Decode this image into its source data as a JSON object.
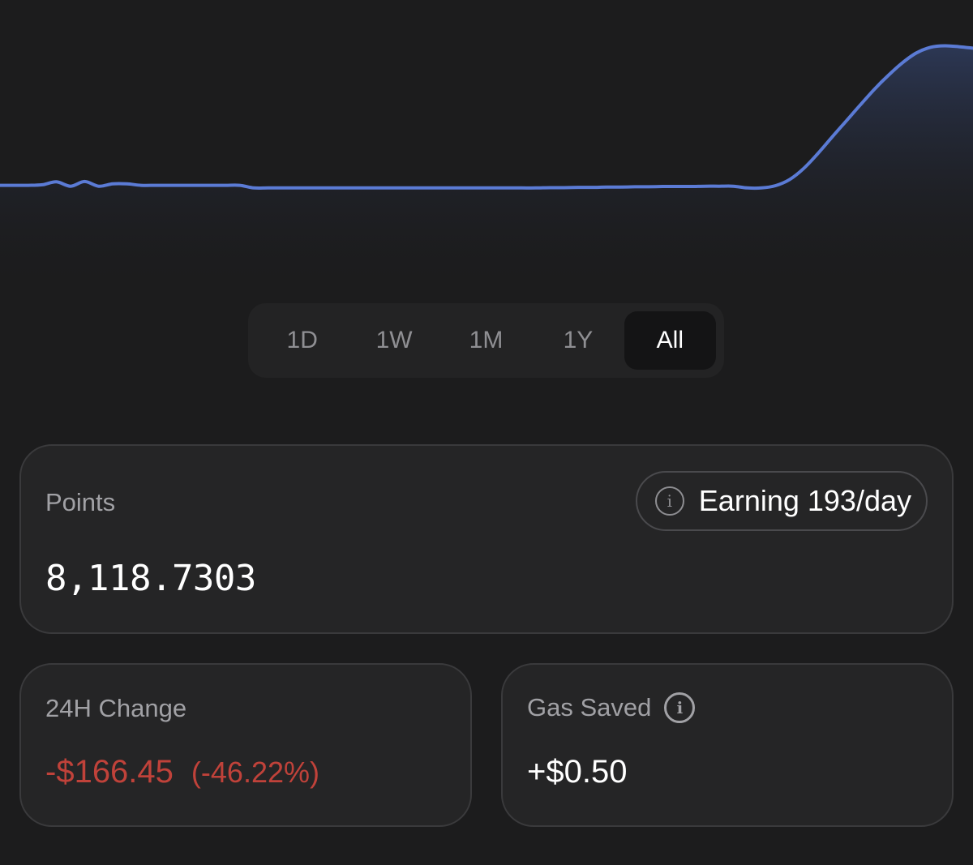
{
  "chart_data": {
    "type": "area",
    "series": [
      {
        "values": [
          36.5,
          36.5,
          36.5,
          36.7,
          37.7,
          36.2,
          37.8,
          36.2,
          37.0,
          37.0,
          36.5,
          36.5,
          36.5,
          36.5,
          36.5,
          36.5,
          36.5,
          36.5,
          35.6,
          35.6,
          35.6,
          35.6,
          35.6,
          35.6,
          35.6,
          35.6,
          35.6,
          35.6,
          35.6,
          35.6,
          35.6,
          35.6,
          35.6,
          35.6,
          35.6,
          35.6,
          35.6,
          35.6,
          35.6,
          35.7,
          35.7,
          35.8,
          35.8,
          35.9,
          35.9,
          36.0,
          36.0,
          36.1,
          36.1,
          36.1,
          36.2,
          36.2,
          36.2,
          35.6,
          35.6,
          36.4,
          38.5,
          42.3,
          47.4,
          53.0,
          58.5,
          64.0,
          69.4,
          74.2,
          78.5,
          81.9,
          83.8,
          84.3,
          84.0,
          83.5
        ]
      }
    ],
    "color": "#5b7bd5",
    "fill_top": "#2c3754",
    "fill_bottom": "#1c1c1d",
    "ylim": [
      0,
      100
    ],
    "grid": false,
    "axes": false
  },
  "range_selector": {
    "tabs": [
      {
        "label": "1D"
      },
      {
        "label": "1W"
      },
      {
        "label": "1M"
      },
      {
        "label": "1Y"
      },
      {
        "label": "All"
      }
    ],
    "active": "All"
  },
  "points_card": {
    "label": "Points",
    "value": "8,118.7303",
    "earning": {
      "icon": "info-circle-icon",
      "text": "Earning 193/day",
      "info_glyph": "i"
    }
  },
  "change_card": {
    "label": "24H Change",
    "amount": "-$166.45",
    "percent": "(-46.22%)",
    "color": "#c0423a"
  },
  "gas_card": {
    "label": "Gas Saved",
    "icon": "info-icon",
    "info_glyph": "i",
    "value": "+$0.50"
  }
}
